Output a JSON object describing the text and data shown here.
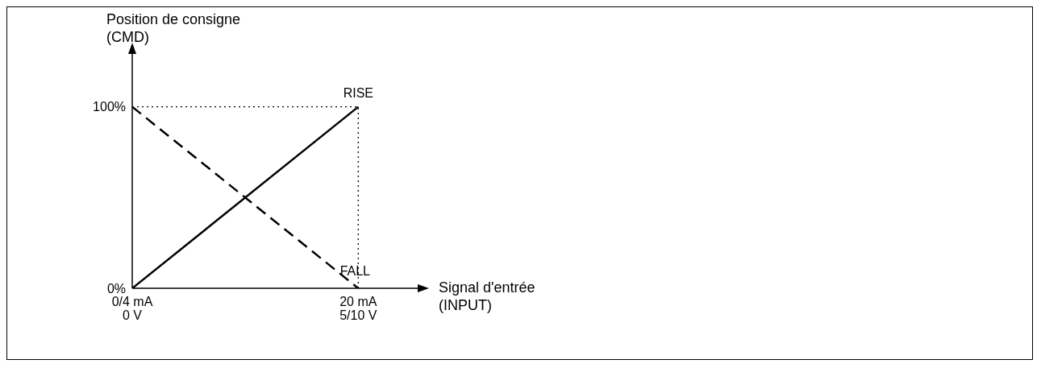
{
  "chart_data": {
    "type": "line",
    "xlabel": "Signal d'entrée (INPUT)",
    "ylabel": "Position de consigne (CMD)",
    "categories": [
      "0/4 mA\n0 V",
      "20 mA\n5/10 V"
    ],
    "series": [
      {
        "name": "RISE",
        "color": "#000000",
        "values": [
          0,
          100
        ],
        "line_style": "solid"
      },
      {
        "name": "FALL",
        "color": "#000000",
        "values": [
          100,
          0
        ],
        "line_style": "dashed"
      }
    ],
    "ylim": [
      0,
      130
    ],
    "yticks": [
      {
        "value": 0,
        "label": "0%"
      },
      {
        "value": 100,
        "label": "100%"
      }
    ],
    "ref_lines": [
      {
        "axis": "y",
        "value": 100,
        "label": null,
        "color": "#000000",
        "line_style": "dotted"
      },
      {
        "axis": "x",
        "value": "20 mA\n5/10 V",
        "label": null,
        "color": "#000000",
        "line_style": "dotted"
      }
    ],
    "grid": false,
    "legend": false,
    "marker": "none"
  }
}
